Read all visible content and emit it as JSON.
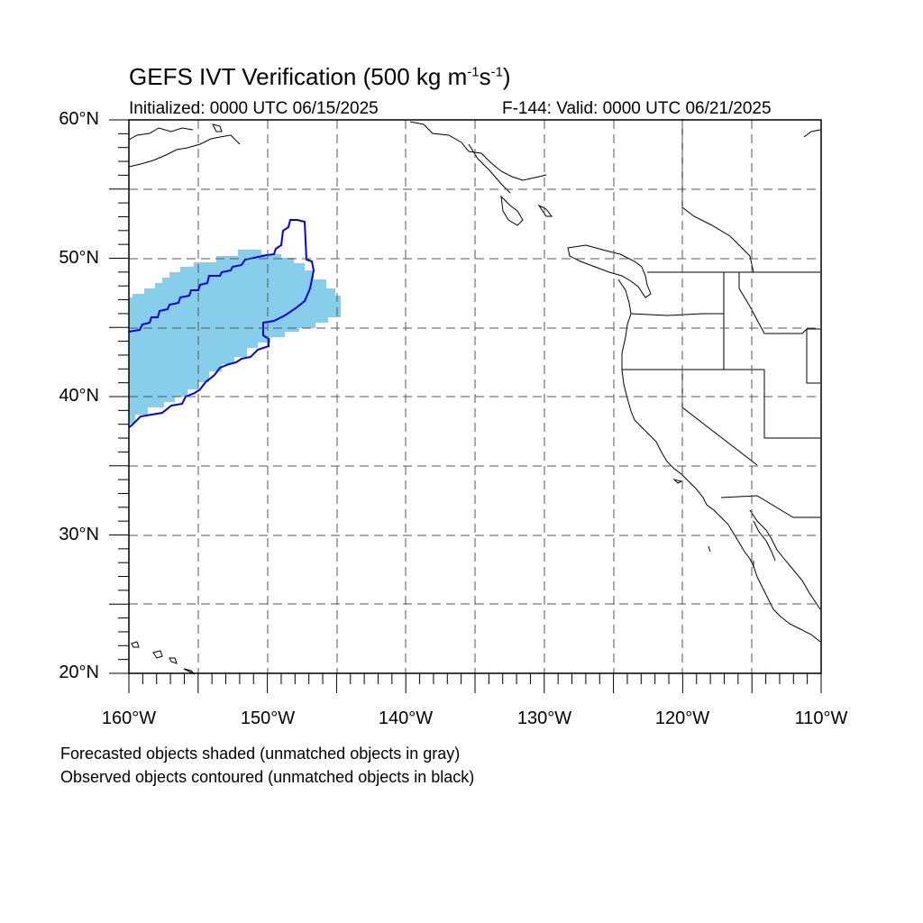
{
  "title": {
    "main": "GEFS IVT Verification (500 kg m",
    "exp1": "-1",
    "mid": "s",
    "exp2": "-1",
    "close": ")"
  },
  "subtitle_left": "Initialized: 0000 UTC 06/15/2025",
  "subtitle_right": "F-144: Valid: 0000 UTC 06/21/2025",
  "lat_labels": [
    "60°N",
    "50°N",
    "40°N",
    "30°N",
    "20°N"
  ],
  "lon_labels": [
    "160°W",
    "150°W",
    "140°W",
    "130°W",
    "120°W",
    "110°W"
  ],
  "legend": {
    "line1": "Forecasted objects shaded (unmatched objects in gray)",
    "line2": "Observed objects contoured (unmatched objects in black)"
  },
  "map_extent": {
    "lon_min": -160,
    "lon_max": -110,
    "lat_min": 20,
    "lat_max": 60
  },
  "colors": {
    "forecast_fill": "#87CEEB",
    "observed_contour": "#0000EE",
    "grid": "#555555",
    "coast": "#000000"
  }
}
